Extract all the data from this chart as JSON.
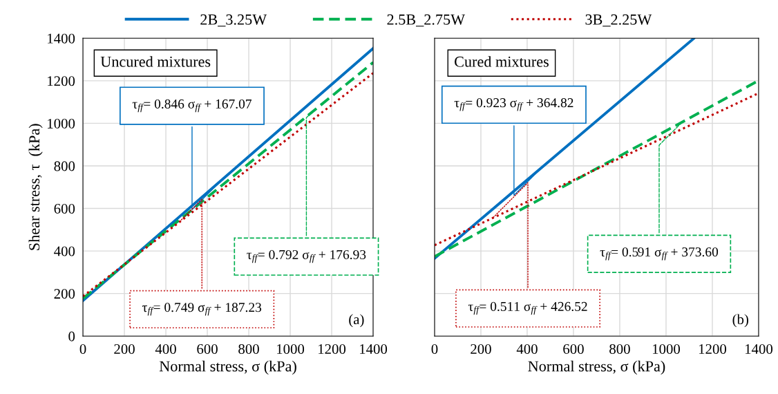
{
  "chart_data": [
    {
      "type": "line",
      "xlabel": "Normal stress, σ (kPa)",
      "ylabel": "Shear stress, τ  (kPa)",
      "legend": "top",
      "grid": true,
      "xlim": [
        0,
        1400
      ],
      "ylim": [
        0,
        1400
      ],
      "xticks": [
        0,
        200,
        400,
        600,
        800,
        1000,
        1200,
        1400
      ],
      "yticks": [
        0,
        200,
        400,
        600,
        800,
        1000,
        1200,
        1400
      ],
      "series": [
        {
          "name": "2B_3.25W",
          "color": "#0070c0",
          "line_style": "solid",
          "x": [
            0,
            1400
          ],
          "values": [
            167,
            1352
          ]
        },
        {
          "name": "2.5B_2.75W",
          "color": "#00b050",
          "line_style": "dashed",
          "x": [
            0,
            1400
          ],
          "values": [
            177,
            1286
          ]
        },
        {
          "name": "3B_2.25W",
          "color": "#c00000",
          "line_style": "dotted",
          "x": [
            0,
            1400
          ],
          "values": [
            187,
            1236
          ]
        }
      ],
      "annotations": [
        "Uncured mixtures",
        {
          "text": "τ$_{ff}$= 0.846 σ$_{ff}$ + 167.07",
          "x": 670,
          "y": 734
        },
        {
          "text": "τ$_{ff}$= 0.792 σ$_{ff}$ + 176.93",
          "x": 1100,
          "y": 1048
        },
        {
          "text": "τ$_{ff}$= 0.749 σ$_{ff}$ + 187.23",
          "x": 460,
          "y": 532
        },
        "(a)"
      ]
    },
    {
      "type": "line",
      "xlabel": "Normal stress, σ (kPa)",
      "grid": true,
      "tick_labels": "x",
      "xlim": [
        0,
        1400
      ],
      "ylim": [
        0,
        1400
      ],
      "xticks": [
        0,
        200,
        400,
        600,
        800,
        1000,
        1200,
        1400
      ],
      "yticks": [
        0,
        200,
        400,
        600,
        800,
        1000,
        1200,
        1400
      ],
      "series": [
        {
          "color": "#0070c0",
          "line_style": "solid",
          "x": [
            0,
            1120
          ],
          "values": [
            365,
            1399
          ]
        },
        {
          "color": "#00b050",
          "line_style": "dashed",
          "x": [
            0,
            1400
          ],
          "values": [
            374,
            1201
          ]
        },
        {
          "color": "#c00000",
          "line_style": "dotted",
          "x": [
            0,
            1400
          ],
          "values": [
            427,
            1142
          ]
        }
      ],
      "annotations": [
        "Cured mixtures",
        {
          "text": "τ$_{ff}$= 0.923 σ$_{ff}$ + 364.82",
          "x": 460,
          "y": 789
        },
        {
          "text": "τ$_{ff}$= 0.591 σ$_{ff}$ + 373.60",
          "x": 1070,
          "y": 1006
        },
        {
          "text": "τ$_{ff}$= 0.511 σ$_{ff}$ + 426.52",
          "x": 250,
          "y": 554
        },
        "(b)"
      ]
    }
  ]
}
